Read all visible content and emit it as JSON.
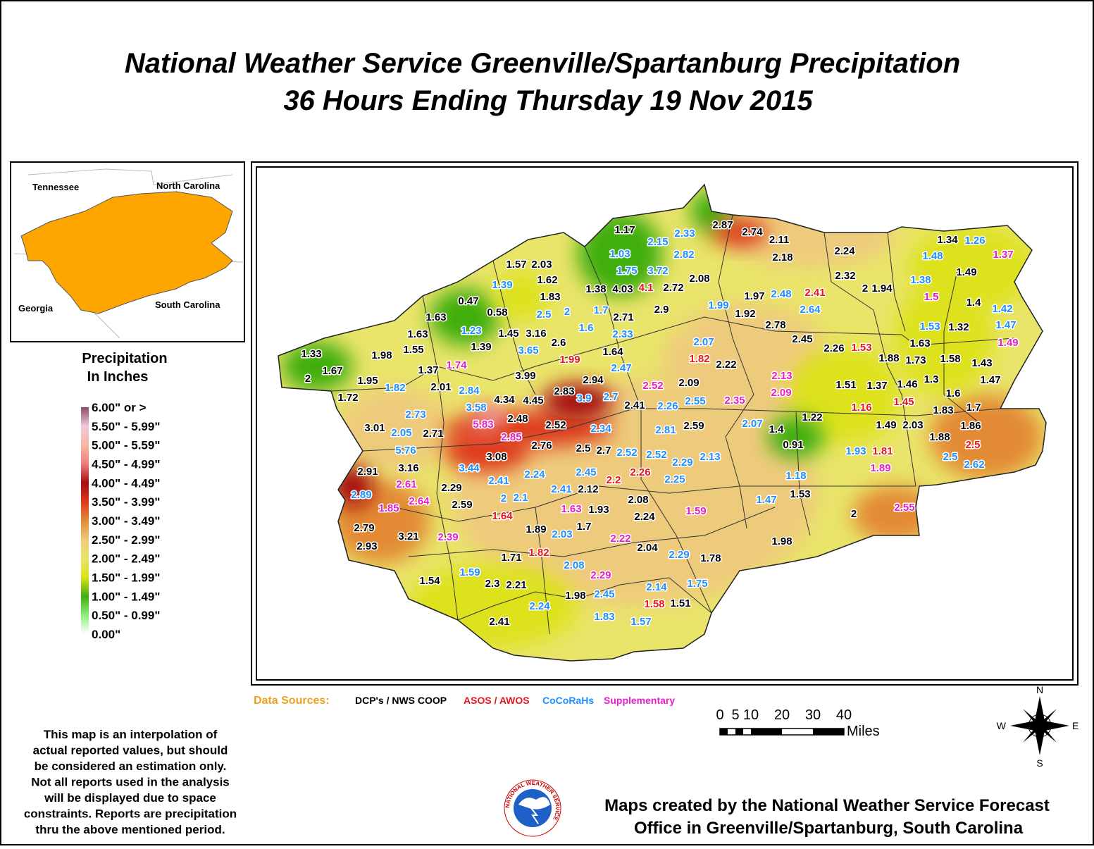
{
  "title": [
    "National Weather Service Greenville/Spartanburg Precipitation",
    "36 Hours Ending Thursday 19 Nov 2015"
  ],
  "inset": {
    "labels": [
      "Tennessee",
      "North Carolina",
      "Georgia",
      "South Carolina"
    ],
    "color": "#ffa500"
  },
  "legend": {
    "title": [
      "Precipitation",
      "In Inches"
    ],
    "items": [
      {
        "label": "6.00\" or >",
        "color": "#8a4a6a"
      },
      {
        "label": "5.50\" - 5.99\"",
        "color": "#f2c6dc"
      },
      {
        "label": "5.00\" - 5.59\"",
        "color": "#f5b9a4"
      },
      {
        "label": "4.50\" - 4.99\"",
        "color": "#ee7d7a"
      },
      {
        "label": "4.00\" - 4.49\"",
        "color": "#a50f0f"
      },
      {
        "label": "3.50\" - 3.99\"",
        "color": "#de3a1c"
      },
      {
        "label": "3.00\" - 3.49\"",
        "color": "#e38a36"
      },
      {
        "label": "2.50\" - 2.99\"",
        "color": "#eecb7c"
      },
      {
        "label": "2.00\" - 2.49\"",
        "color": "#e9e46a"
      },
      {
        "label": "1.50\" - 1.99\"",
        "color": "#dde21a"
      },
      {
        "label": "1.00\" - 1.49\"",
        "color": "#3fae10"
      },
      {
        "label": "0.50\" - 0.99\"",
        "color": "#8cf07a"
      },
      {
        "label": "0.00\"",
        "color": "#ffffff"
      }
    ]
  },
  "data_sources": {
    "title": "Data Sources:",
    "title_color": "#f0a020",
    "items": [
      {
        "label": "DCP's / NWS COOP",
        "color": "#000000"
      },
      {
        "label": "ASOS / AWOS",
        "color": "#e8161b"
      },
      {
        "label": "CoCoRaHs",
        "color": "#1e8fff"
      },
      {
        "label": "Supplementary",
        "color": "#e81ec8"
      }
    ]
  },
  "scale": {
    "ticks": [
      "0",
      "5",
      "10",
      "20",
      "30",
      "40"
    ],
    "unit": "Miles"
  },
  "compass": [
    "N",
    "E",
    "S",
    "W"
  ],
  "disclaimer": [
    "This map is an interpolation of",
    "actual reported values, but should",
    "be considered an estimation only.",
    "Not all reports used in the analysis",
    "will be displayed due to space",
    "constraints. Reports are precipitation",
    "thru the above mentioned period."
  ],
  "credit": [
    "Maps created by the National Weather Service Forecast",
    "Office in Greenville/Spartanburg, South Carolina"
  ],
  "logo_text": "NATIONAL WEATHER SERVICE",
  "stations": [
    {
      "value": "1.17",
      "source": 0
    },
    {
      "value": "2.33",
      "source": 2
    },
    {
      "value": "2.87",
      "source": 0
    },
    {
      "value": "2.74",
      "source": 0
    },
    {
      "value": "2.11",
      "source": 0
    },
    {
      "value": "2.18",
      "source": 0
    },
    {
      "value": "2.24",
      "source": 0
    },
    {
      "value": "1.34",
      "source": 0
    },
    {
      "value": "1.26",
      "source": 2
    },
    {
      "value": "1.48",
      "source": 2
    },
    {
      "value": "1.37",
      "source": 3
    },
    {
      "value": "2.15",
      "source": 2
    },
    {
      "value": "1.03",
      "source": 2
    },
    {
      "value": "2.82",
      "source": 2
    },
    {
      "value": "1.57",
      "source": 0
    },
    {
      "value": "2.03",
      "source": 0
    },
    {
      "value": "1.75",
      "source": 2
    },
    {
      "value": "3.72",
      "source": 2
    },
    {
      "value": "2.08",
      "source": 0
    },
    {
      "value": "2.32",
      "source": 0
    },
    {
      "value": "1.49",
      "source": 0
    },
    {
      "value": "1.62",
      "source": 0
    },
    {
      "value": "1.39",
      "source": 2
    },
    {
      "value": "1.38",
      "source": 0
    },
    {
      "value": "4.03",
      "source": 0
    },
    {
      "value": "4.1",
      "source": 1
    },
    {
      "value": "2.72",
      "source": 0
    },
    {
      "value": "1.97",
      "source": 0
    },
    {
      "value": "2.48",
      "source": 2
    },
    {
      "value": "2.41",
      "source": 1
    },
    {
      "value": "2",
      "source": 0
    },
    {
      "value": "1.94",
      "source": 0
    },
    {
      "value": "1.38",
      "source": 2
    },
    {
      "value": "1.5",
      "source": 3
    },
    {
      "value": "1.83",
      "source": 0
    },
    {
      "value": "0.47",
      "source": 0
    },
    {
      "value": "0.58",
      "source": 0
    },
    {
      "value": "2.5",
      "source": 2
    },
    {
      "value": "2",
      "source": 2
    },
    {
      "value": "1.7",
      "source": 2
    },
    {
      "value": "2.9",
      "source": 0
    },
    {
      "value": "1.99",
      "source": 2
    },
    {
      "value": "1.92",
      "source": 0
    },
    {
      "value": "2.64",
      "source": 2
    },
    {
      "value": "1.4",
      "source": 0
    },
    {
      "value": "1.42",
      "source": 2
    },
    {
      "value": "1.63",
      "source": 0
    },
    {
      "value": "1.23",
      "source": 2
    },
    {
      "value": "1.45",
      "source": 0
    },
    {
      "value": "3.16",
      "source": 0
    },
    {
      "value": "2.71",
      "source": 0
    },
    {
      "value": "1.6",
      "source": 2
    },
    {
      "value": "2.78",
      "source": 0
    },
    {
      "value": "1.53",
      "source": 2
    },
    {
      "value": "1.32",
      "source": 0
    },
    {
      "value": "1.47",
      "source": 2
    },
    {
      "value": "1.63",
      "source": 0
    },
    {
      "value": "2.33",
      "source": 2
    },
    {
      "value": "2.45",
      "source": 0
    },
    {
      "value": "2.26",
      "source": 0
    },
    {
      "value": "1.53",
      "source": 1
    },
    {
      "value": "1.63",
      "source": 0
    },
    {
      "value": "1.49",
      "source": 3
    },
    {
      "value": "1.33",
      "source": 0
    },
    {
      "value": "1.98",
      "source": 0
    },
    {
      "value": "1.55",
      "source": 0
    },
    {
      "value": "1.39",
      "source": 0
    },
    {
      "value": "2.6",
      "source": 0
    },
    {
      "value": "3.65",
      "source": 2
    },
    {
      "value": "1.64",
      "source": 0
    },
    {
      "value": "2.07",
      "source": 2
    },
    {
      "value": "1.82",
      "source": 1
    },
    {
      "value": "2.22",
      "source": 0
    },
    {
      "value": "1.88",
      "source": 0
    },
    {
      "value": "1.73",
      "source": 0
    },
    {
      "value": "1.58",
      "source": 0
    },
    {
      "value": "1.43",
      "source": 0
    },
    {
      "value": "1.67",
      "source": 0
    },
    {
      "value": "1.37",
      "source": 0
    },
    {
      "value": "1.74",
      "source": 3
    },
    {
      "value": "1.99",
      "source": 1
    },
    {
      "value": "2.47",
      "source": 2
    },
    {
      "value": "2.13",
      "source": 3
    },
    {
      "value": "1.47",
      "source": 0
    },
    {
      "value": "2",
      "source": 0
    },
    {
      "value": "1.95",
      "source": 0
    },
    {
      "value": "3.99",
      "source": 0
    },
    {
      "value": "2.94",
      "source": 0
    },
    {
      "value": "1.3",
      "source": 0
    },
    {
      "value": "2.01",
      "source": 0
    },
    {
      "value": "2.84",
      "source": 2
    },
    {
      "value": "1.82",
      "source": 2
    },
    {
      "value": "2.52",
      "source": 3
    },
    {
      "value": "2.09",
      "source": 0
    },
    {
      "value": "1.51",
      "source": 0
    },
    {
      "value": "1.37",
      "source": 0
    },
    {
      "value": "1.46",
      "source": 0
    },
    {
      "value": "2.83",
      "source": 0
    },
    {
      "value": "2.09",
      "source": 3
    },
    {
      "value": "1.6",
      "source": 0
    },
    {
      "value": "1.72",
      "source": 0
    },
    {
      "value": "4.34",
      "source": 0
    },
    {
      "value": "4.45",
      "source": 0
    },
    {
      "value": "3.9",
      "source": 2
    },
    {
      "value": "2.7",
      "source": 2
    },
    {
      "value": "2.55",
      "source": 2
    },
    {
      "value": "2.35",
      "source": 3
    },
    {
      "value": "2.41",
      "source": 0
    },
    {
      "value": "2.26",
      "source": 2
    },
    {
      "value": "3.58",
      "source": 2
    },
    {
      "value": "1.16",
      "source": 1
    },
    {
      "value": "1.45",
      "source": 1
    },
    {
      "value": "1.83",
      "source": 0
    },
    {
      "value": "1.7",
      "source": 0
    },
    {
      "value": "2.73",
      "source": 2
    },
    {
      "value": "2.48",
      "source": 0
    },
    {
      "value": "1.22",
      "source": 0
    },
    {
      "value": "2.07",
      "source": 2
    },
    {
      "value": "3.01",
      "source": 0
    },
    {
      "value": "5.83",
      "source": 3
    },
    {
      "value": "2.52",
      "source": 0
    },
    {
      "value": "2.34",
      "source": 2
    },
    {
      "value": "2.81",
      "source": 2
    },
    {
      "value": "2.59",
      "source": 0
    },
    {
      "value": "1.4",
      "source": 0
    },
    {
      "value": "1.49",
      "source": 0
    },
    {
      "value": "2.03",
      "source": 0
    },
    {
      "value": "1.86",
      "source": 0
    },
    {
      "value": "2.05",
      "source": 2
    },
    {
      "value": "2.71",
      "source": 0
    },
    {
      "value": "2.85",
      "source": 3
    },
    {
      "value": "1.88",
      "source": 0
    },
    {
      "value": "2.76",
      "source": 0
    },
    {
      "value": "2.5",
      "source": 0
    },
    {
      "value": "2.7",
      "source": 0
    },
    {
      "value": "2.52",
      "source": 2
    },
    {
      "value": "2.52",
      "source": 2
    },
    {
      "value": "2.13",
      "source": 2
    },
    {
      "value": "0.91",
      "source": 0
    },
    {
      "value": "1.93",
      "source": 2
    },
    {
      "value": "1.81",
      "source": 1
    },
    {
      "value": "2.5",
      "source": 1
    },
    {
      "value": "5.76",
      "source": 2
    },
    {
      "value": "3.08",
      "source": 0
    },
    {
      "value": "2.29",
      "source": 2
    },
    {
      "value": "2.5",
      "source": 2
    },
    {
      "value": "2.62",
      "source": 2
    },
    {
      "value": "2.91",
      "source": 0
    },
    {
      "value": "3.16",
      "source": 0
    },
    {
      "value": "3.44",
      "source": 2
    },
    {
      "value": "2.24",
      "source": 2
    },
    {
      "value": "2.45",
      "source": 2
    },
    {
      "value": "2.26",
      "source": 1
    },
    {
      "value": "1.89",
      "source": 3
    },
    {
      "value": "1.18",
      "source": 2
    },
    {
      "value": "2.2",
      "source": 1
    },
    {
      "value": "2.25",
      "source": 2
    },
    {
      "value": "2.61",
      "source": 3
    },
    {
      "value": "2.41",
      "source": 2
    },
    {
      "value": "2.12",
      "source": 0
    },
    {
      "value": "2.41",
      "source": 2
    },
    {
      "value": "2.29",
      "source": 0
    },
    {
      "value": "1.47",
      "source": 2
    },
    {
      "value": "1.53",
      "source": 0
    },
    {
      "value": "2.89",
      "source": 2
    },
    {
      "value": "2.64",
      "source": 3
    },
    {
      "value": "2",
      "source": 2
    },
    {
      "value": "2.1",
      "source": 2
    },
    {
      "value": "2.08",
      "source": 0
    },
    {
      "value": "2.59",
      "source": 0
    },
    {
      "value": "1.63",
      "source": 3
    },
    {
      "value": "1.93",
      "source": 0
    },
    {
      "value": "1.59",
      "source": 3
    },
    {
      "value": "2.55",
      "source": 3
    },
    {
      "value": "2",
      "source": 0
    },
    {
      "value": "1.85",
      "source": 3
    },
    {
      "value": "1.64",
      "source": 1
    },
    {
      "value": "2.24",
      "source": 0
    },
    {
      "value": "1.7",
      "source": 0
    },
    {
      "value": "2.79",
      "source": 0
    },
    {
      "value": "1.89",
      "source": 0
    },
    {
      "value": "3.21",
      "source": 0
    },
    {
      "value": "2.39",
      "source": 3
    },
    {
      "value": "2.03",
      "source": 2
    },
    {
      "value": "2.22",
      "source": 3
    },
    {
      "value": "1.98",
      "source": 0
    },
    {
      "value": "2.93",
      "source": 0
    },
    {
      "value": "2.04",
      "source": 0
    },
    {
      "value": "1.82",
      "source": 1
    },
    {
      "value": "1.71",
      "source": 0
    },
    {
      "value": "2.29",
      "source": 2
    },
    {
      "value": "1.78",
      "source": 0
    },
    {
      "value": "2.08",
      "source": 2
    },
    {
      "value": "1.59",
      "source": 2
    },
    {
      "value": "2.29",
      "source": 3
    },
    {
      "value": "1.54",
      "source": 0
    },
    {
      "value": "2.3",
      "source": 0
    },
    {
      "value": "2.21",
      "source": 0
    },
    {
      "value": "2.14",
      "source": 2
    },
    {
      "value": "1.75",
      "source": 2
    },
    {
      "value": "1.98",
      "source": 0
    },
    {
      "value": "2.45",
      "source": 2
    },
    {
      "value": "1.58",
      "source": 1
    },
    {
      "value": "1.51",
      "source": 0
    },
    {
      "value": "2.24",
      "source": 2
    },
    {
      "value": "1.83",
      "source": 2
    },
    {
      "value": "1.57",
      "source": 2
    },
    {
      "value": "2.41",
      "source": 0
    }
  ]
}
